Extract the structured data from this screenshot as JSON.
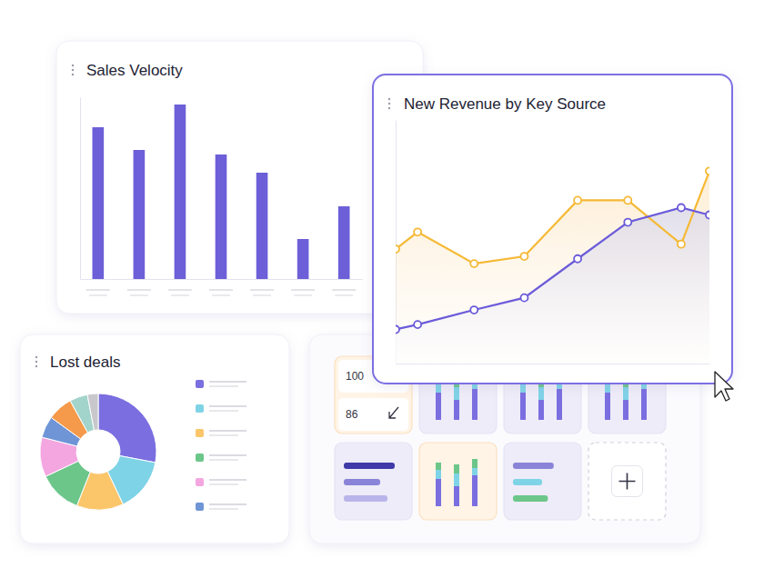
{
  "chart_data": [
    {
      "type": "bar",
      "title": "Sales Velocity",
      "categories": [
        null,
        null,
        null,
        null,
        null,
        null,
        null
      ],
      "values": [
        167,
        142,
        192,
        137,
        117,
        44,
        80
      ],
      "color": "#6c5fd8",
      "ylim": [
        0,
        200
      ],
      "tick_labels": false
    },
    {
      "type": "line",
      "title": "New Revenue by Key Source",
      "x": [
        0,
        7,
        25,
        41,
        58,
        74,
        91,
        100
      ],
      "xlim": [
        0,
        100
      ],
      "ylim": [
        0,
        100
      ],
      "tick_labels": false,
      "series": [
        {
          "color": "#f5b935",
          "marker": "circle",
          "values": [
            47,
            54,
            41,
            44,
            67,
            67,
            49,
            79
          ]
        },
        {
          "color": "#6b5bd9",
          "marker": "circle",
          "values": [
            14,
            16,
            22,
            27,
            43,
            58,
            64,
            61
          ]
        }
      ]
    },
    {
      "type": "pie",
      "title": "Lost deals",
      "values": [
        28,
        15,
        13,
        12,
        11,
        6,
        7,
        5,
        3
      ],
      "colors": [
        "#7b6ee0",
        "#7fd3e6",
        "#fbc56a",
        "#6cc68a",
        "#f4a6e0",
        "#6f95d6",
        "#f59a4a",
        "#a3d4cb",
        "#c8c8cc"
      ],
      "legend": "right"
    }
  ],
  "widget_gallery": {
    "kpi_values": [
      100,
      86
    ]
  }
}
